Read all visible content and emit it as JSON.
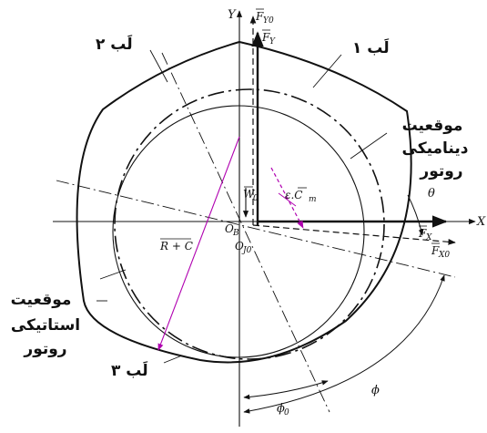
{
  "labels": {
    "lobe1": "لَب ۱",
    "lobe2": "لَب ۲",
    "lobe3": "لَب ۳",
    "dynamic_position": [
      "موقعیت",
      "دینامیکی",
      "روتور"
    ],
    "static_position": [
      "موقعیت",
      "استاتیکی",
      "روتور"
    ]
  },
  "symbols": {
    "axis_y": "Y",
    "axis_x": "X",
    "theta": "θ",
    "force_fy0": "F",
    "force_fy0_sub": "Y0",
    "force_fy": "F",
    "force_fy_sub": "Y",
    "force_fx": "F",
    "force_fx_sub": "X",
    "force_fx0": "F",
    "force_fx0_sub": "X0",
    "load": "W",
    "load_sub": "0",
    "unbalance": "ε.C",
    "unbalance_sub": "m",
    "clearance": "R + C",
    "center_ob": "O",
    "center_ob_sub": "B",
    "center_oj0": "O",
    "center_oj0_sub": "J0",
    "phi0": "ϕ",
    "phi0_sub": "0",
    "phi": "ϕ"
  },
  "colors": {
    "line": "#111111",
    "accent": "#b000b0"
  }
}
